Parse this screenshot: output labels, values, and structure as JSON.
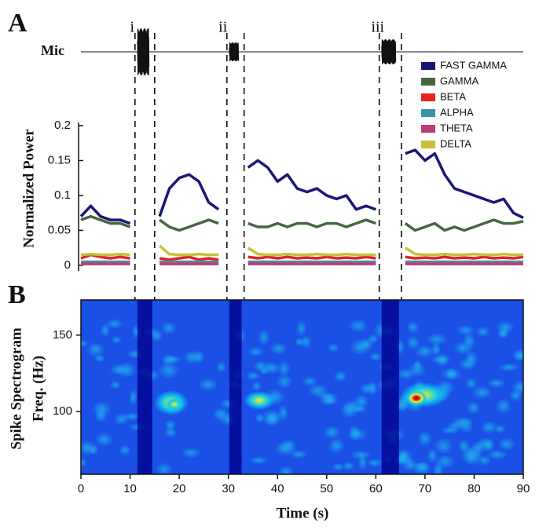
{
  "panels": [
    "A",
    "B"
  ],
  "chart_data": [
    {
      "type": "waveform",
      "ylabel": "Mic",
      "xlim": [
        0,
        90
      ],
      "segments": [
        {
          "label": "i",
          "start": 11,
          "end": 15
        },
        {
          "label": "ii",
          "start": 29.7,
          "end": 33.2
        },
        {
          "label": "iii",
          "start": 60.7,
          "end": 65.2
        }
      ]
    },
    {
      "type": "line",
      "ylabel": "Normalized Power",
      "xlim": [
        0,
        90
      ],
      "ylim": [
        -0.008,
        0.2
      ],
      "yticks": [
        0,
        0.05,
        0.1,
        0.15,
        0.2
      ],
      "legend": "upper right",
      "x": [
        0,
        2,
        4,
        6,
        8,
        10,
        12,
        14,
        16,
        18,
        20,
        22,
        24,
        26,
        28,
        30,
        32,
        34,
        36,
        38,
        40,
        42,
        44,
        46,
        48,
        50,
        52,
        54,
        56,
        58,
        60,
        62,
        64,
        66,
        68,
        70,
        72,
        74,
        76,
        78,
        80,
        82,
        84,
        86,
        88,
        90
      ],
      "series": [
        {
          "name": "FAST GAMMA",
          "color": "#1b1676",
          "values": [
            0.07,
            0.085,
            0.07,
            0.065,
            0.065,
            0.06,
            null,
            null,
            0.07,
            0.11,
            0.125,
            0.13,
            0.12,
            0.09,
            0.08,
            null,
            null,
            0.14,
            0.15,
            0.14,
            0.12,
            0.13,
            0.11,
            0.105,
            0.11,
            0.1,
            0.095,
            0.1,
            0.08,
            0.085,
            0.08,
            null,
            null,
            0.16,
            0.165,
            0.15,
            0.16,
            0.13,
            0.11,
            0.105,
            0.1,
            0.095,
            0.09,
            0.095,
            0.075,
            0.068
          ]
        },
        {
          "name": "GAMMA",
          "color": "#466642",
          "values": [
            0.065,
            0.07,
            0.065,
            0.06,
            0.06,
            0.055,
            null,
            null,
            0.065,
            0.055,
            0.05,
            0.055,
            0.06,
            0.065,
            0.06,
            null,
            null,
            0.06,
            0.055,
            0.055,
            0.06,
            0.055,
            0.06,
            0.06,
            0.055,
            0.06,
            0.06,
            0.055,
            0.06,
            0.065,
            0.06,
            null,
            null,
            0.06,
            0.05,
            0.055,
            0.06,
            0.05,
            0.055,
            0.05,
            0.055,
            0.06,
            0.065,
            0.06,
            0.06,
            0.063
          ]
        },
        {
          "name": "BETA",
          "color": "#e8231f",
          "values": [
            0.01,
            0.015,
            0.012,
            0.01,
            0.012,
            0.01,
            null,
            null,
            0.01,
            0.008,
            0.01,
            0.012,
            0.008,
            0.01,
            0.008,
            null,
            null,
            0.012,
            0.01,
            0.012,
            0.01,
            0.012,
            0.01,
            0.011,
            0.01,
            0.012,
            0.01,
            0.011,
            0.01,
            0.012,
            0.01,
            null,
            null,
            0.012,
            0.01,
            0.011,
            0.01,
            0.012,
            0.01,
            0.011,
            0.01,
            0.012,
            0.01,
            0.011,
            0.01,
            0.012
          ]
        },
        {
          "name": "ALPHA",
          "color": "#3a94a8",
          "values": [
            0.005,
            0.005,
            0.005,
            0.005,
            0.005,
            0.005,
            null,
            null,
            0.005,
            0.005,
            0.005,
            0.005,
            0.005,
            0.005,
            0.005,
            null,
            null,
            0.005,
            0.005,
            0.005,
            0.005,
            0.005,
            0.005,
            0.005,
            0.005,
            0.005,
            0.005,
            0.005,
            0.005,
            0.005,
            0.005,
            null,
            null,
            0.005,
            0.005,
            0.005,
            0.005,
            0.005,
            0.005,
            0.005,
            0.005,
            0.005,
            0.005,
            0.005,
            0.005,
            0.005
          ]
        },
        {
          "name": "THETA",
          "color": "#c03a78",
          "values": [
            0.002,
            0.002,
            0.002,
            0.002,
            0.002,
            0.002,
            null,
            null,
            0.002,
            0.002,
            0.002,
            0.002,
            0.002,
            0.002,
            0.002,
            null,
            null,
            0.002,
            0.002,
            0.002,
            0.002,
            0.002,
            0.002,
            0.002,
            0.002,
            0.002,
            0.002,
            0.002,
            0.002,
            0.002,
            0.002,
            null,
            null,
            0.002,
            0.002,
            0.002,
            0.002,
            0.002,
            0.002,
            0.002,
            0.002,
            0.002,
            0.002,
            0.002,
            0.002,
            0.002
          ]
        },
        {
          "name": "DELTA",
          "color": "#c4c23a",
          "values": [
            0.015,
            0.016,
            0.015,
            0.015,
            0.016,
            0.015,
            null,
            null,
            0.028,
            0.016,
            0.015,
            0.015,
            0.016,
            0.015,
            0.015,
            null,
            null,
            0.025,
            0.016,
            0.015,
            0.015,
            0.016,
            0.015,
            0.015,
            0.016,
            0.015,
            0.015,
            0.016,
            0.015,
            0.015,
            0.015,
            null,
            null,
            0.025,
            0.016,
            0.015,
            0.015,
            0.016,
            0.015,
            0.015,
            0.016,
            0.015,
            0.015,
            0.016,
            0.015,
            0.015
          ]
        }
      ]
    },
    {
      "type": "heatmap",
      "ylabel": [
        "Spike Spectrogram",
        "Freq. (Hz)"
      ],
      "xlabel": "Time (s)",
      "xlim": [
        0,
        90
      ],
      "ylim": [
        59,
        173
      ],
      "xticks": [
        0,
        10,
        20,
        30,
        40,
        50,
        60,
        70,
        80,
        90
      ],
      "yticks": [
        100,
        150
      ],
      "colormap": [
        "#00008f",
        "#1a50e6",
        "#10c8f0",
        "#f0f020",
        "#e82010",
        "#800000"
      ]
    }
  ]
}
